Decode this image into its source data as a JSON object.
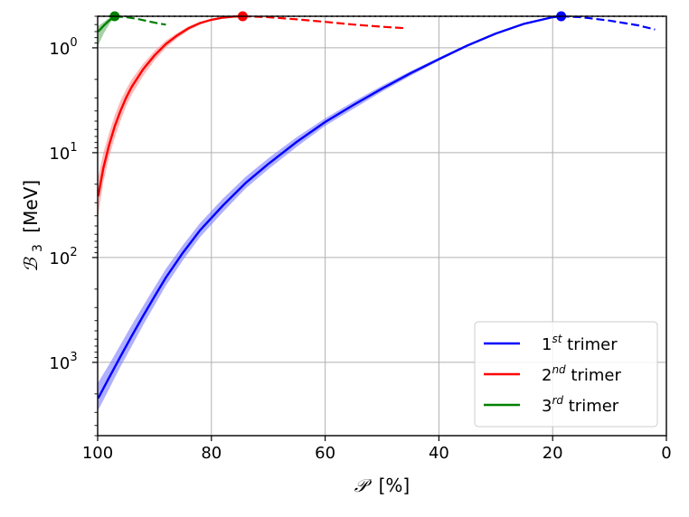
{
  "chart_data": {
    "type": "line",
    "xlabel_symbol": "𝒫",
    "xlabel_unit": "[%]",
    "ylabel_symbol": "ℬ",
    "ylabel_sub": "3",
    "ylabel_unit": "[MeV]",
    "x_axis": {
      "reversed": true,
      "range": [
        100,
        0
      ],
      "ticks": [
        100,
        80,
        60,
        40,
        20,
        0
      ]
    },
    "y_axis": {
      "scale": "log",
      "inverted": true,
      "range": [
        0.5,
        5000
      ],
      "ticks": [
        {
          "value": 1,
          "base": "10",
          "exp": "0"
        },
        {
          "value": 10,
          "base": "10",
          "exp": "1"
        },
        {
          "value": 100,
          "base": "10",
          "exp": "2"
        },
        {
          "value": 1000,
          "base": "10",
          "exp": "3"
        }
      ]
    },
    "grid": true,
    "reference_line": {
      "y": 0.5,
      "style": "dotted",
      "color": "#7f7f7f"
    },
    "legend": {
      "placement": "bottom-right"
    },
    "series": [
      {
        "name_base": "1",
        "name_sup": "st",
        "name_rest": " trimer",
        "color": "#0000ff",
        "band_color": "#7b7bff",
        "solid": [
          [
            99.9,
            2200
          ],
          [
            98,
            1400
          ],
          [
            96,
            880
          ],
          [
            94,
            560
          ],
          [
            92,
            360
          ],
          [
            90,
            235
          ],
          [
            88,
            155
          ],
          [
            85,
            90
          ],
          [
            82,
            55
          ],
          [
            78,
            32
          ],
          [
            74,
            19.5
          ],
          [
            70,
            12.8
          ],
          [
            65,
            7.9
          ],
          [
            60,
            5.1
          ],
          [
            55,
            3.5
          ],
          [
            50,
            2.45
          ],
          [
            45,
            1.75
          ],
          [
            40,
            1.28
          ],
          [
            35,
            0.95
          ],
          [
            30,
            0.73
          ],
          [
            25,
            0.59
          ],
          [
            20,
            0.51
          ],
          [
            18.5,
            0.5
          ]
        ],
        "band_low": [
          [
            99.9,
            1550
          ],
          [
            98,
            1050
          ],
          [
            96,
            680
          ],
          [
            94,
            440
          ],
          [
            92,
            290
          ],
          [
            90,
            192
          ],
          [
            88,
            128
          ],
          [
            85,
            76
          ],
          [
            82,
            47
          ],
          [
            78,
            27.5
          ],
          [
            74,
            17
          ],
          [
            70,
            11.3
          ],
          [
            65,
            7.1
          ],
          [
            60,
            4.7
          ],
          [
            55,
            3.25
          ],
          [
            50,
            2.3
          ],
          [
            45,
            1.67
          ],
          [
            40,
            1.24
          ],
          [
            35,
            0.93
          ],
          [
            30,
            0.72
          ],
          [
            25,
            0.585
          ],
          [
            20,
            0.508
          ],
          [
            18.5,
            0.5
          ]
        ],
        "band_high": [
          [
            99.9,
            2850
          ],
          [
            98,
            1800
          ],
          [
            96,
            1100
          ],
          [
            94,
            700
          ],
          [
            92,
            440
          ],
          [
            90,
            285
          ],
          [
            88,
            185
          ],
          [
            85,
            106
          ],
          [
            82,
            64
          ],
          [
            78,
            37
          ],
          [
            74,
            22
          ],
          [
            70,
            14.4
          ],
          [
            65,
            8.8
          ],
          [
            60,
            5.55
          ],
          [
            55,
            3.8
          ],
          [
            50,
            2.62
          ],
          [
            45,
            1.85
          ],
          [
            40,
            1.33
          ],
          [
            35,
            0.98
          ],
          [
            30,
            0.75
          ],
          [
            25,
            0.6
          ],
          [
            20,
            0.513
          ],
          [
            18.5,
            0.5
          ]
        ],
        "dashed": [
          [
            18.5,
            0.5
          ],
          [
            15,
            0.51
          ],
          [
            10,
            0.55
          ],
          [
            5,
            0.61
          ],
          [
            2,
            0.67
          ]
        ],
        "marker": [
          18.5,
          0.5
        ]
      },
      {
        "name_base": "2",
        "name_sup": "nd",
        "name_rest": " trimer",
        "color": "#ff0000",
        "band_color": "#ff8c8c",
        "solid": [
          [
            99.9,
            26
          ],
          [
            99,
            14
          ],
          [
            98,
            8.5
          ],
          [
            97,
            5.6
          ],
          [
            96,
            4.0
          ],
          [
            95,
            3.0
          ],
          [
            94,
            2.35
          ],
          [
            92,
            1.6
          ],
          [
            90,
            1.18
          ],
          [
            88,
            0.92
          ],
          [
            86,
            0.76
          ],
          [
            84,
            0.65
          ],
          [
            82,
            0.58
          ],
          [
            80,
            0.54
          ],
          [
            78,
            0.515
          ],
          [
            76,
            0.503
          ],
          [
            74.5,
            0.5
          ]
        ],
        "band_low": [
          [
            99.9,
            17
          ],
          [
            99,
            10
          ],
          [
            98,
            6.5
          ],
          [
            97,
            4.4
          ],
          [
            96,
            3.2
          ],
          [
            95,
            2.5
          ],
          [
            94,
            2.0
          ],
          [
            92,
            1.42
          ],
          [
            90,
            1.07
          ],
          [
            88,
            0.85
          ],
          [
            86,
            0.72
          ],
          [
            84,
            0.625
          ],
          [
            82,
            0.565
          ],
          [
            80,
            0.53
          ],
          [
            78,
            0.51
          ],
          [
            76,
            0.502
          ],
          [
            74.5,
            0.5
          ]
        ],
        "band_high": [
          [
            99.9,
            40
          ],
          [
            99,
            19
          ],
          [
            98,
            11
          ],
          [
            97,
            7.2
          ],
          [
            96,
            5.0
          ],
          [
            95,
            3.6
          ],
          [
            94,
            2.8
          ],
          [
            92,
            1.85
          ],
          [
            90,
            1.32
          ],
          [
            88,
            1.0
          ],
          [
            86,
            0.81
          ],
          [
            84,
            0.68
          ],
          [
            82,
            0.6
          ],
          [
            80,
            0.55
          ],
          [
            78,
            0.52
          ],
          [
            76,
            0.505
          ],
          [
            74.5,
            0.5
          ]
        ],
        "dashed": [
          [
            74.5,
            0.5
          ],
          [
            70,
            0.51
          ],
          [
            65,
            0.535
          ],
          [
            60,
            0.565
          ],
          [
            55,
            0.6
          ],
          [
            50,
            0.63
          ],
          [
            46,
            0.65
          ]
        ],
        "marker": [
          74.5,
          0.5
        ]
      },
      {
        "name_base": "3",
        "name_sup": "rd",
        "name_rest": " trimer",
        "color": "#008000",
        "band_color": "#66b266",
        "solid": [
          [
            99.9,
            0.7
          ],
          [
            99,
            0.62
          ],
          [
            98,
            0.55
          ],
          [
            97,
            0.5
          ]
        ],
        "band_low": [
          [
            99.9,
            0.62
          ],
          [
            99,
            0.57
          ],
          [
            98,
            0.52
          ],
          [
            97,
            0.5
          ]
        ],
        "band_high": [
          [
            99.9,
            0.95
          ],
          [
            99,
            0.74
          ],
          [
            98,
            0.6
          ],
          [
            97,
            0.5
          ]
        ],
        "dashed": [
          [
            97,
            0.5
          ],
          [
            95,
            0.51
          ],
          [
            93,
            0.53
          ],
          [
            91,
            0.56
          ],
          [
            89,
            0.59
          ],
          [
            88,
            0.6
          ]
        ],
        "marker": [
          97,
          0.5
        ]
      }
    ]
  }
}
